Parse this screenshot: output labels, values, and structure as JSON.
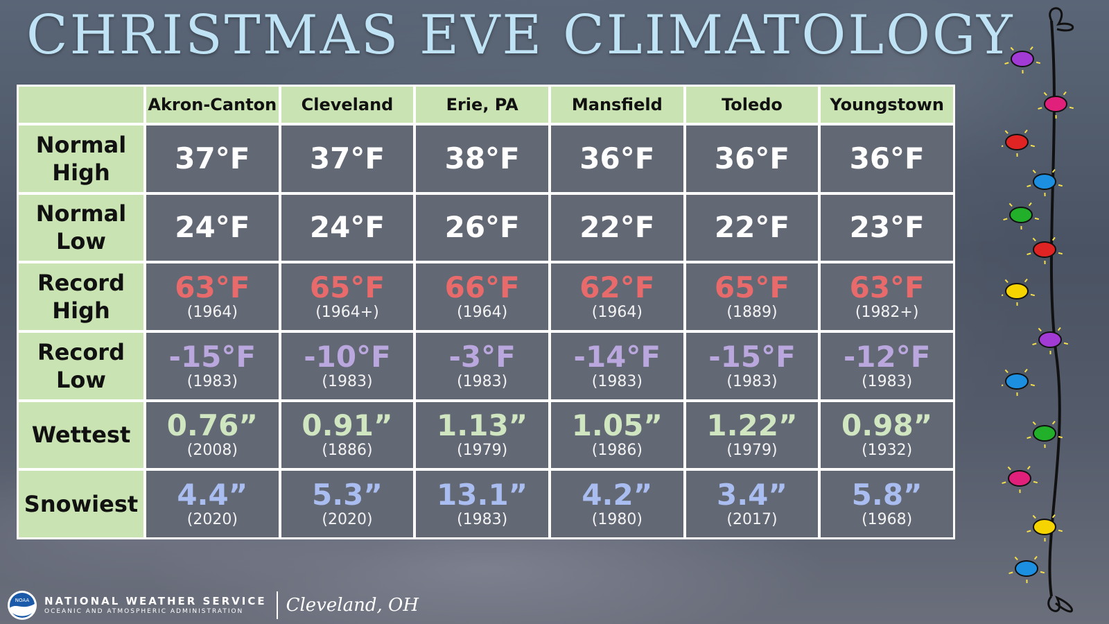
{
  "title": "CHRISTMAS EVE CLIMATOLOGY",
  "table": {
    "columns": [
      "Akron-Canton",
      "Cleveland",
      "Erie, PA",
      "Mansfield",
      "Toledo",
      "Youngstown"
    ],
    "rows": [
      {
        "label": "Normal High",
        "type": "normal",
        "values": [
          "37°F",
          "37°F",
          "38°F",
          "36°F",
          "36°F",
          "36°F"
        ]
      },
      {
        "label": "Normal Low",
        "type": "normal",
        "values": [
          "24°F",
          "24°F",
          "26°F",
          "22°F",
          "22°F",
          "23°F"
        ]
      },
      {
        "label": "Record High",
        "type": "rhigh",
        "values": [
          "63°F",
          "65°F",
          "66°F",
          "62°F",
          "65°F",
          "63°F"
        ],
        "years": [
          "(1964)",
          "(1964+)",
          "(1964)",
          "(1964)",
          "(1889)",
          "(1982+)"
        ]
      },
      {
        "label": "Record Low",
        "type": "rlow",
        "values": [
          "-15°F",
          "-10°F",
          "-3°F",
          "-14°F",
          "-15°F",
          "-12°F"
        ],
        "years": [
          "(1983)",
          "(1983)",
          "(1983)",
          "(1983)",
          "(1983)",
          "(1983)"
        ]
      },
      {
        "label": "Wettest",
        "type": "wet",
        "values": [
          "0.76”",
          "0.91”",
          "1.13”",
          "1.05”",
          "1.22”",
          "0.98”"
        ],
        "years": [
          "(2008)",
          "(1886)",
          "(1979)",
          "(1986)",
          "(1979)",
          "(1932)"
        ]
      },
      {
        "label": "Snowiest",
        "type": "snow",
        "values": [
          "4.4”",
          "5.3”",
          "13.1”",
          "4.2”",
          "3.4”",
          "5.8”"
        ],
        "years": [
          "(2020)",
          "(2020)",
          "(1983)",
          "(1980)",
          "(2017)",
          "(1968)"
        ]
      }
    ]
  },
  "colors": {
    "header_bg": "#c9e3b2",
    "record_high": "#e86a6a",
    "record_low": "#b9a7de",
    "wettest": "#cfe6c0",
    "snowiest": "#a9bdf0",
    "title": "#bfe3f4"
  },
  "icons": [
    "noaa-logo-icon",
    "christmas-lights-icon"
  ],
  "footer": {
    "agency": "NATIONAL WEATHER SERVICE",
    "subagency": "OCEANIC AND ATMOSPHERIC ADMINISTRATION",
    "logo_text": "NOAA",
    "office": "Cleveland, OH"
  }
}
